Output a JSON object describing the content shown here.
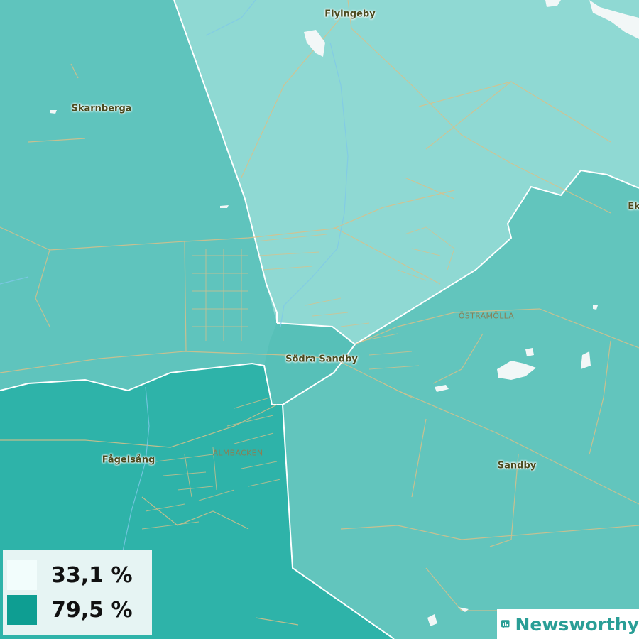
{
  "map": {
    "places": [
      {
        "name": "Flyingeby",
        "kind": "place"
      },
      {
        "name": "Skarnberga",
        "kind": "place"
      },
      {
        "name": "Ek",
        "kind": "place"
      },
      {
        "name": "ÖSTRAMÖLLA",
        "kind": "district"
      },
      {
        "name": "Södra Sandby",
        "kind": "place"
      },
      {
        "name": "Fågelsång",
        "kind": "place"
      },
      {
        "name": "ALMBACKEN",
        "kind": "district"
      },
      {
        "name": "Sandby",
        "kind": "place"
      }
    ],
    "region_colors": {
      "north": "#8fd9d3",
      "west": "#5fc4bd",
      "east": "#62c5bd",
      "southwest": "#2eb3a9",
      "center": "#55bfb7",
      "water": "#f2f7f7",
      "roads": "#d9c08a",
      "streams": "#7fc8e8"
    }
  },
  "legend": {
    "items": [
      {
        "label": "33,1 %",
        "color": "#f2fdfc"
      },
      {
        "label": "79,5 %",
        "color": "#0e9e92"
      }
    ]
  },
  "brand": {
    "name": "Newsworthy",
    "icon": "newsworthy-chart-icon",
    "color": "#2a9e96"
  }
}
